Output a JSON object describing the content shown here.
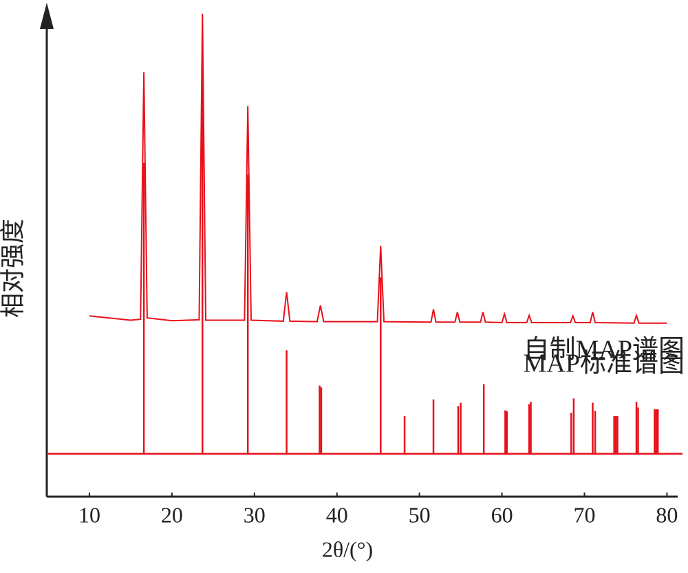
{
  "chart_data": {
    "type": "line",
    "x_label": "2θ/(°)",
    "y_label": "相对强度",
    "xlim": [
      5,
      81.3
    ],
    "ylim": [
      -9,
      93
    ],
    "xticks": [
      10,
      20,
      30,
      40,
      50,
      60,
      70,
      80
    ],
    "series": [
      {
        "name": "自制MAP谱图",
        "type": "line",
        "color": "#e8101a",
        "x": [
          10,
          15,
          16.2,
          16.6,
          17,
          20,
          23.3,
          23.7,
          24.1,
          28.8,
          29.2,
          29.6,
          33.5,
          33.9,
          34.3,
          37.6,
          38,
          38.4,
          44.9,
          45.3,
          45.7,
          51.4,
          51.7,
          52,
          54.3,
          54.6,
          54.9,
          57.4,
          57.7,
          58,
          60,
          60.3,
          60.6,
          63,
          63.3,
          63.6,
          68.3,
          68.6,
          68.9,
          70.7,
          71,
          71.3,
          76,
          76.3,
          76.6,
          80
        ],
        "values": [
          28.9,
          28.0,
          28.2,
          80,
          28.5,
          27.9,
          28.1,
          92.3,
          28.0,
          28.0,
          72.9,
          28.0,
          27.8,
          33.9,
          27.8,
          27.7,
          31.1,
          27.7,
          27.7,
          43.6,
          27.7,
          27.6,
          30.3,
          27.6,
          27.6,
          29.7,
          27.6,
          27.6,
          29.7,
          27.6,
          27.5,
          29.3,
          27.5,
          27.5,
          29.0,
          27.5,
          27.5,
          28.9,
          27.5,
          27.5,
          29.7,
          27.5,
          27.4,
          29.0,
          27.4,
          27.4
        ]
      },
      {
        "name": "MAP标准谱图",
        "type": "stick",
        "color": "#e8101a",
        "baseline": 0,
        "x": [
          16.6,
          23.7,
          29.2,
          33.9,
          37.9,
          38.1,
          45.3,
          48.2,
          51.7,
          54.7,
          55.0,
          57.8,
          60.4,
          60.6,
          63.3,
          63.5,
          68.4,
          68.7,
          71.0,
          71.3,
          73.6,
          73.8,
          74.0,
          76.3,
          76.5,
          78.5,
          78.7,
          78.9
        ],
        "values": [
          61,
          80,
          58.6,
          21.7,
          14.3,
          13.9,
          37,
          7.9,
          11.4,
          10,
          10.7,
          14.6,
          9.1,
          8.9,
          10.4,
          10.9,
          8.6,
          11.6,
          10.7,
          9,
          7.9,
          7.9,
          7.9,
          10.9,
          9.7,
          9.3,
          9.3,
          9.3
        ]
      }
    ]
  }
}
